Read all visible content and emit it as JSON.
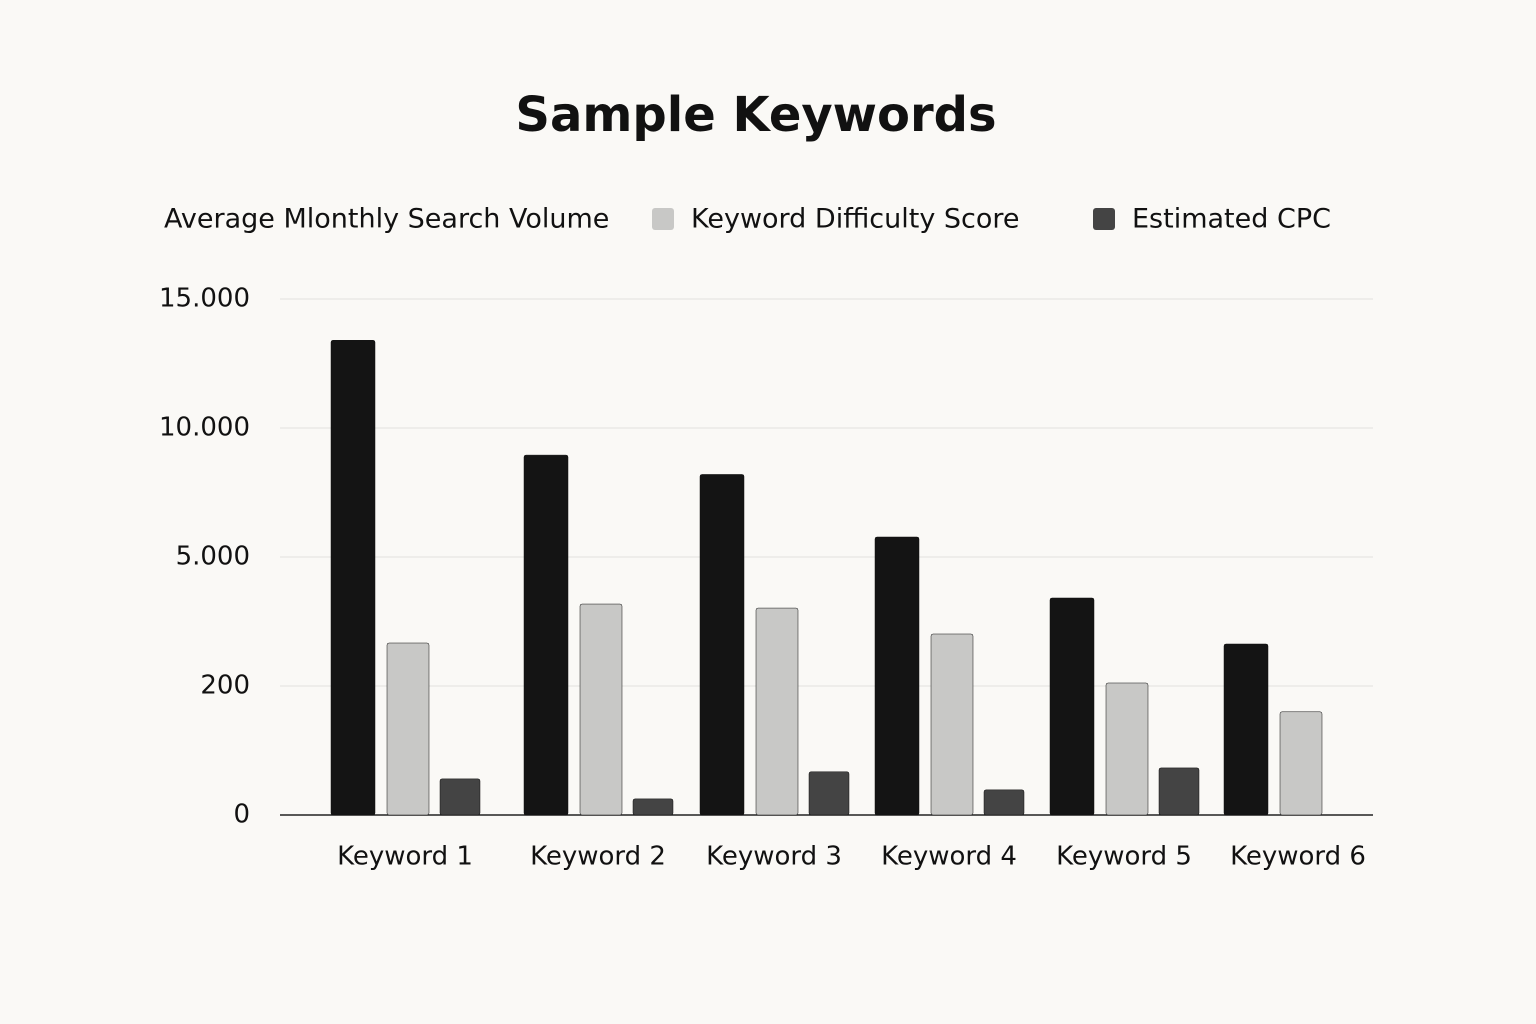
{
  "chart_data": {
    "type": "bar",
    "title": "Sample Keywords",
    "categories": [
      "Keyword 1",
      "Keyword 2",
      "Keyword 3",
      "Keyword 4",
      "Keyword 5",
      "Keyword 6"
    ],
    "series": [
      {
        "name": "Average Mlonthly Search Volume",
        "color": "#141414",
        "values": [
          13400,
          8950,
          8200,
          5775,
          3475,
          1763
        ]
      },
      {
        "name": "Keyword Difficulty Score",
        "color": "#c8c8c6",
        "values": [
          1800,
          3250,
          3100,
          2135,
          312,
          160
        ]
      },
      {
        "name": "Estimated CPC",
        "color": "#444444",
        "values": [
          56,
          25,
          67,
          39,
          73,
          null
        ]
      }
    ],
    "ylim": [
      0,
      15000
    ],
    "yticks": [
      0,
      200,
      {
        "value": 5000,
        "label": "5.000"
      },
      {
        "value": 10000,
        "label": "10.000"
      },
      {
        "value": 15000,
        "label": "15.000"
      }
    ],
    "grid": true
  }
}
